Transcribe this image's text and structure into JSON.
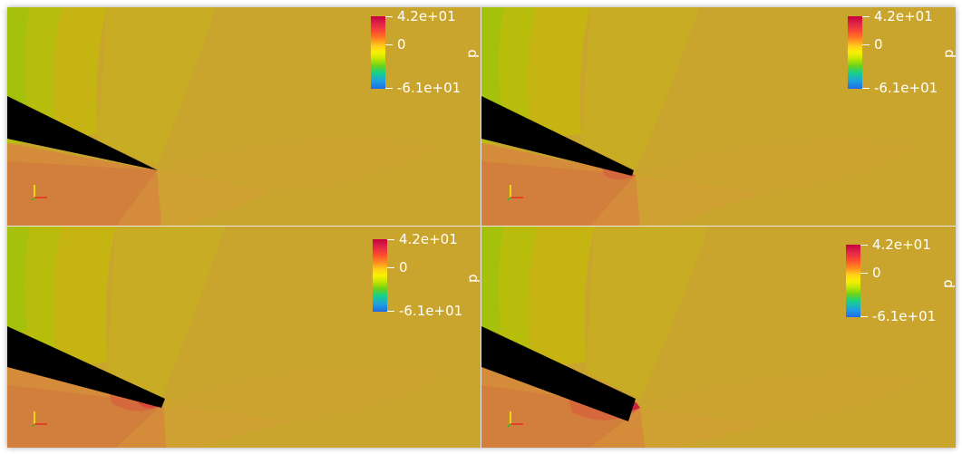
{
  "viewports": [
    {
      "variable": "p",
      "max_label": "4.2e+01",
      "mid_label": "0",
      "min_label": "-6.1e+01"
    },
    {
      "variable": "p",
      "max_label": "4.2e+01",
      "mid_label": "0",
      "min_label": "-6.1e+01"
    },
    {
      "variable": "p",
      "max_label": "4.2e+01",
      "mid_label": "0",
      "min_label": "-6.1e+01"
    },
    {
      "variable": "p",
      "max_label": "4.2e+01",
      "mid_label": "0",
      "min_label": "-6.1e+01"
    }
  ],
  "colors": {
    "background_field": "#c9a52d",
    "upper_yellow": "#c9be10",
    "green_band": "#9cc20c",
    "lower_orange": "#d4783a",
    "stagnation_red": "#d82f3a",
    "airfoil": "#000000"
  },
  "colormap_name": "rainbow-desaturated"
}
